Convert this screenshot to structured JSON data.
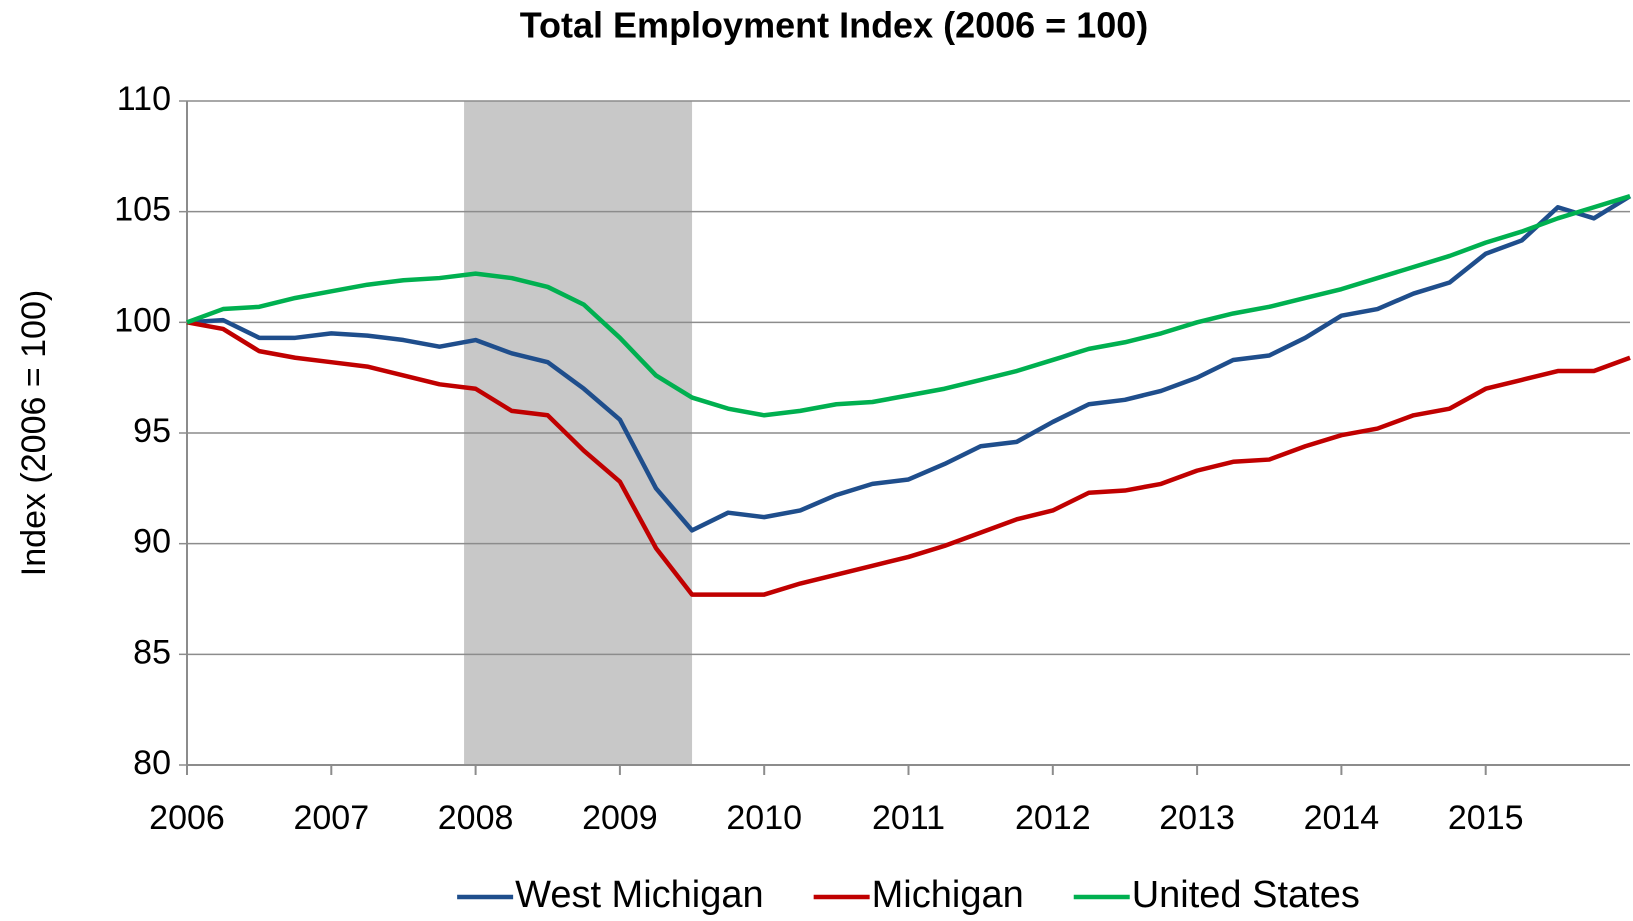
{
  "chart_data": {
    "type": "line",
    "title": "Total Employment Index (2006 = 100)",
    "y_label": "Index (2006 = 100)",
    "x": [
      2006,
      2006.25,
      2006.5,
      2006.75,
      2007,
      2007.25,
      2007.5,
      2007.75,
      2008,
      2008.25,
      2008.5,
      2008.75,
      2009,
      2009.25,
      2009.5,
      2009.75,
      2010,
      2010.25,
      2010.5,
      2010.75,
      2011,
      2011.25,
      2011.5,
      2011.75,
      2012,
      2012.25,
      2012.5,
      2012.75,
      2013,
      2013.25,
      2013.5,
      2013.75,
      2014,
      2014.25,
      2014.5,
      2014.75,
      2015,
      2015.25,
      2015.5,
      2015.75,
      2016
    ],
    "series": [
      {
        "name": "West Michigan",
        "color": "#1f4e8c",
        "values": [
          100,
          100.1,
          99.3,
          99.3,
          99.5,
          99.4,
          99.2,
          98.9,
          99.2,
          98.6,
          98.2,
          97.0,
          95.6,
          92.5,
          90.6,
          91.4,
          91.2,
          91.5,
          92.2,
          92.7,
          92.9,
          93.6,
          94.4,
          94.6,
          95.5,
          96.3,
          96.5,
          96.9,
          97.5,
          98.3,
          98.5,
          99.3,
          100.3,
          100.6,
          101.3,
          101.8,
          103.1,
          103.7,
          105.2,
          104.7,
          105.7
        ]
      },
      {
        "name": "Michigan",
        "color": "#c00000",
        "values": [
          100,
          99.7,
          98.7,
          98.4,
          98.2,
          98.0,
          97.6,
          97.2,
          97.0,
          96.0,
          95.8,
          94.2,
          92.8,
          89.8,
          87.7,
          87.7,
          87.7,
          88.2,
          88.6,
          89.0,
          89.4,
          89.9,
          90.5,
          91.1,
          91.5,
          92.3,
          92.4,
          92.7,
          93.3,
          93.7,
          93.8,
          94.4,
          94.9,
          95.2,
          95.8,
          96.1,
          97.0,
          97.4,
          97.8,
          97.8,
          98.4
        ]
      },
      {
        "name": "United States",
        "color": "#00b050",
        "values": [
          100,
          100.6,
          100.7,
          101.1,
          101.4,
          101.7,
          101.9,
          102.0,
          102.2,
          102.0,
          101.6,
          100.8,
          99.3,
          97.6,
          96.6,
          96.1,
          95.8,
          96.0,
          96.3,
          96.4,
          96.7,
          97.0,
          97.4,
          97.8,
          98.3,
          98.8,
          99.1,
          99.5,
          100.0,
          100.4,
          100.7,
          101.1,
          101.5,
          102.0,
          102.5,
          103.0,
          103.6,
          104.1,
          104.7,
          105.2,
          105.7
        ]
      }
    ],
    "shade": {
      "from": 2007.92,
      "to": 2009.5,
      "color": "#c8c8c8"
    },
    "xlim": [
      2006,
      2016
    ],
    "xticks": [
      2006,
      2007,
      2008,
      2009,
      2010,
      2011,
      2012,
      2013,
      2014,
      2015
    ],
    "ylim": [
      80,
      110
    ],
    "yticks": [
      80,
      85,
      90,
      95,
      100,
      105,
      110
    ],
    "grid": true,
    "legend": "bottom"
  }
}
